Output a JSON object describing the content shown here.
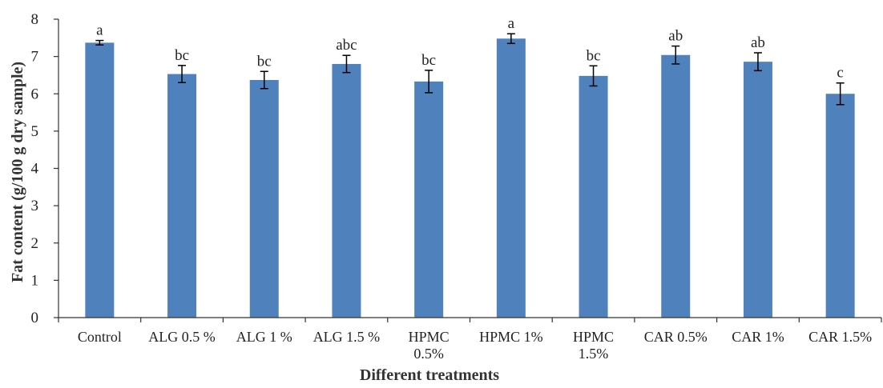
{
  "chart_data": {
    "type": "bar",
    "title": "",
    "xlabel": "Different treatments",
    "ylabel": "Fat content (g/100 g dry sample)",
    "ylim": [
      0,
      8
    ],
    "yticks": [
      0,
      1,
      2,
      3,
      4,
      5,
      6,
      7,
      8
    ],
    "grid": false,
    "legend": "none",
    "bar_color": "#4f81bd",
    "categories": [
      [
        "Control"
      ],
      [
        "ALG 0.5 %"
      ],
      [
        "ALG 1 %"
      ],
      [
        "ALG 1.5 %"
      ],
      [
        "HPMC",
        "0.5%"
      ],
      [
        "HPMC 1%"
      ],
      [
        "HPMC",
        "1.5%"
      ],
      [
        "CAR 0.5%"
      ],
      [
        "CAR 1%"
      ],
      [
        "CAR 1.5%"
      ]
    ],
    "values": [
      7.37,
      6.53,
      6.37,
      6.8,
      6.33,
      7.48,
      6.48,
      7.04,
      6.86,
      6.0
    ],
    "errors": [
      0.06,
      0.23,
      0.23,
      0.23,
      0.3,
      0.13,
      0.27,
      0.24,
      0.24,
      0.29
    ],
    "significance": [
      "a",
      "bc",
      "bc",
      "abc",
      "bc",
      "a",
      "bc",
      "ab",
      "ab",
      "c"
    ]
  }
}
